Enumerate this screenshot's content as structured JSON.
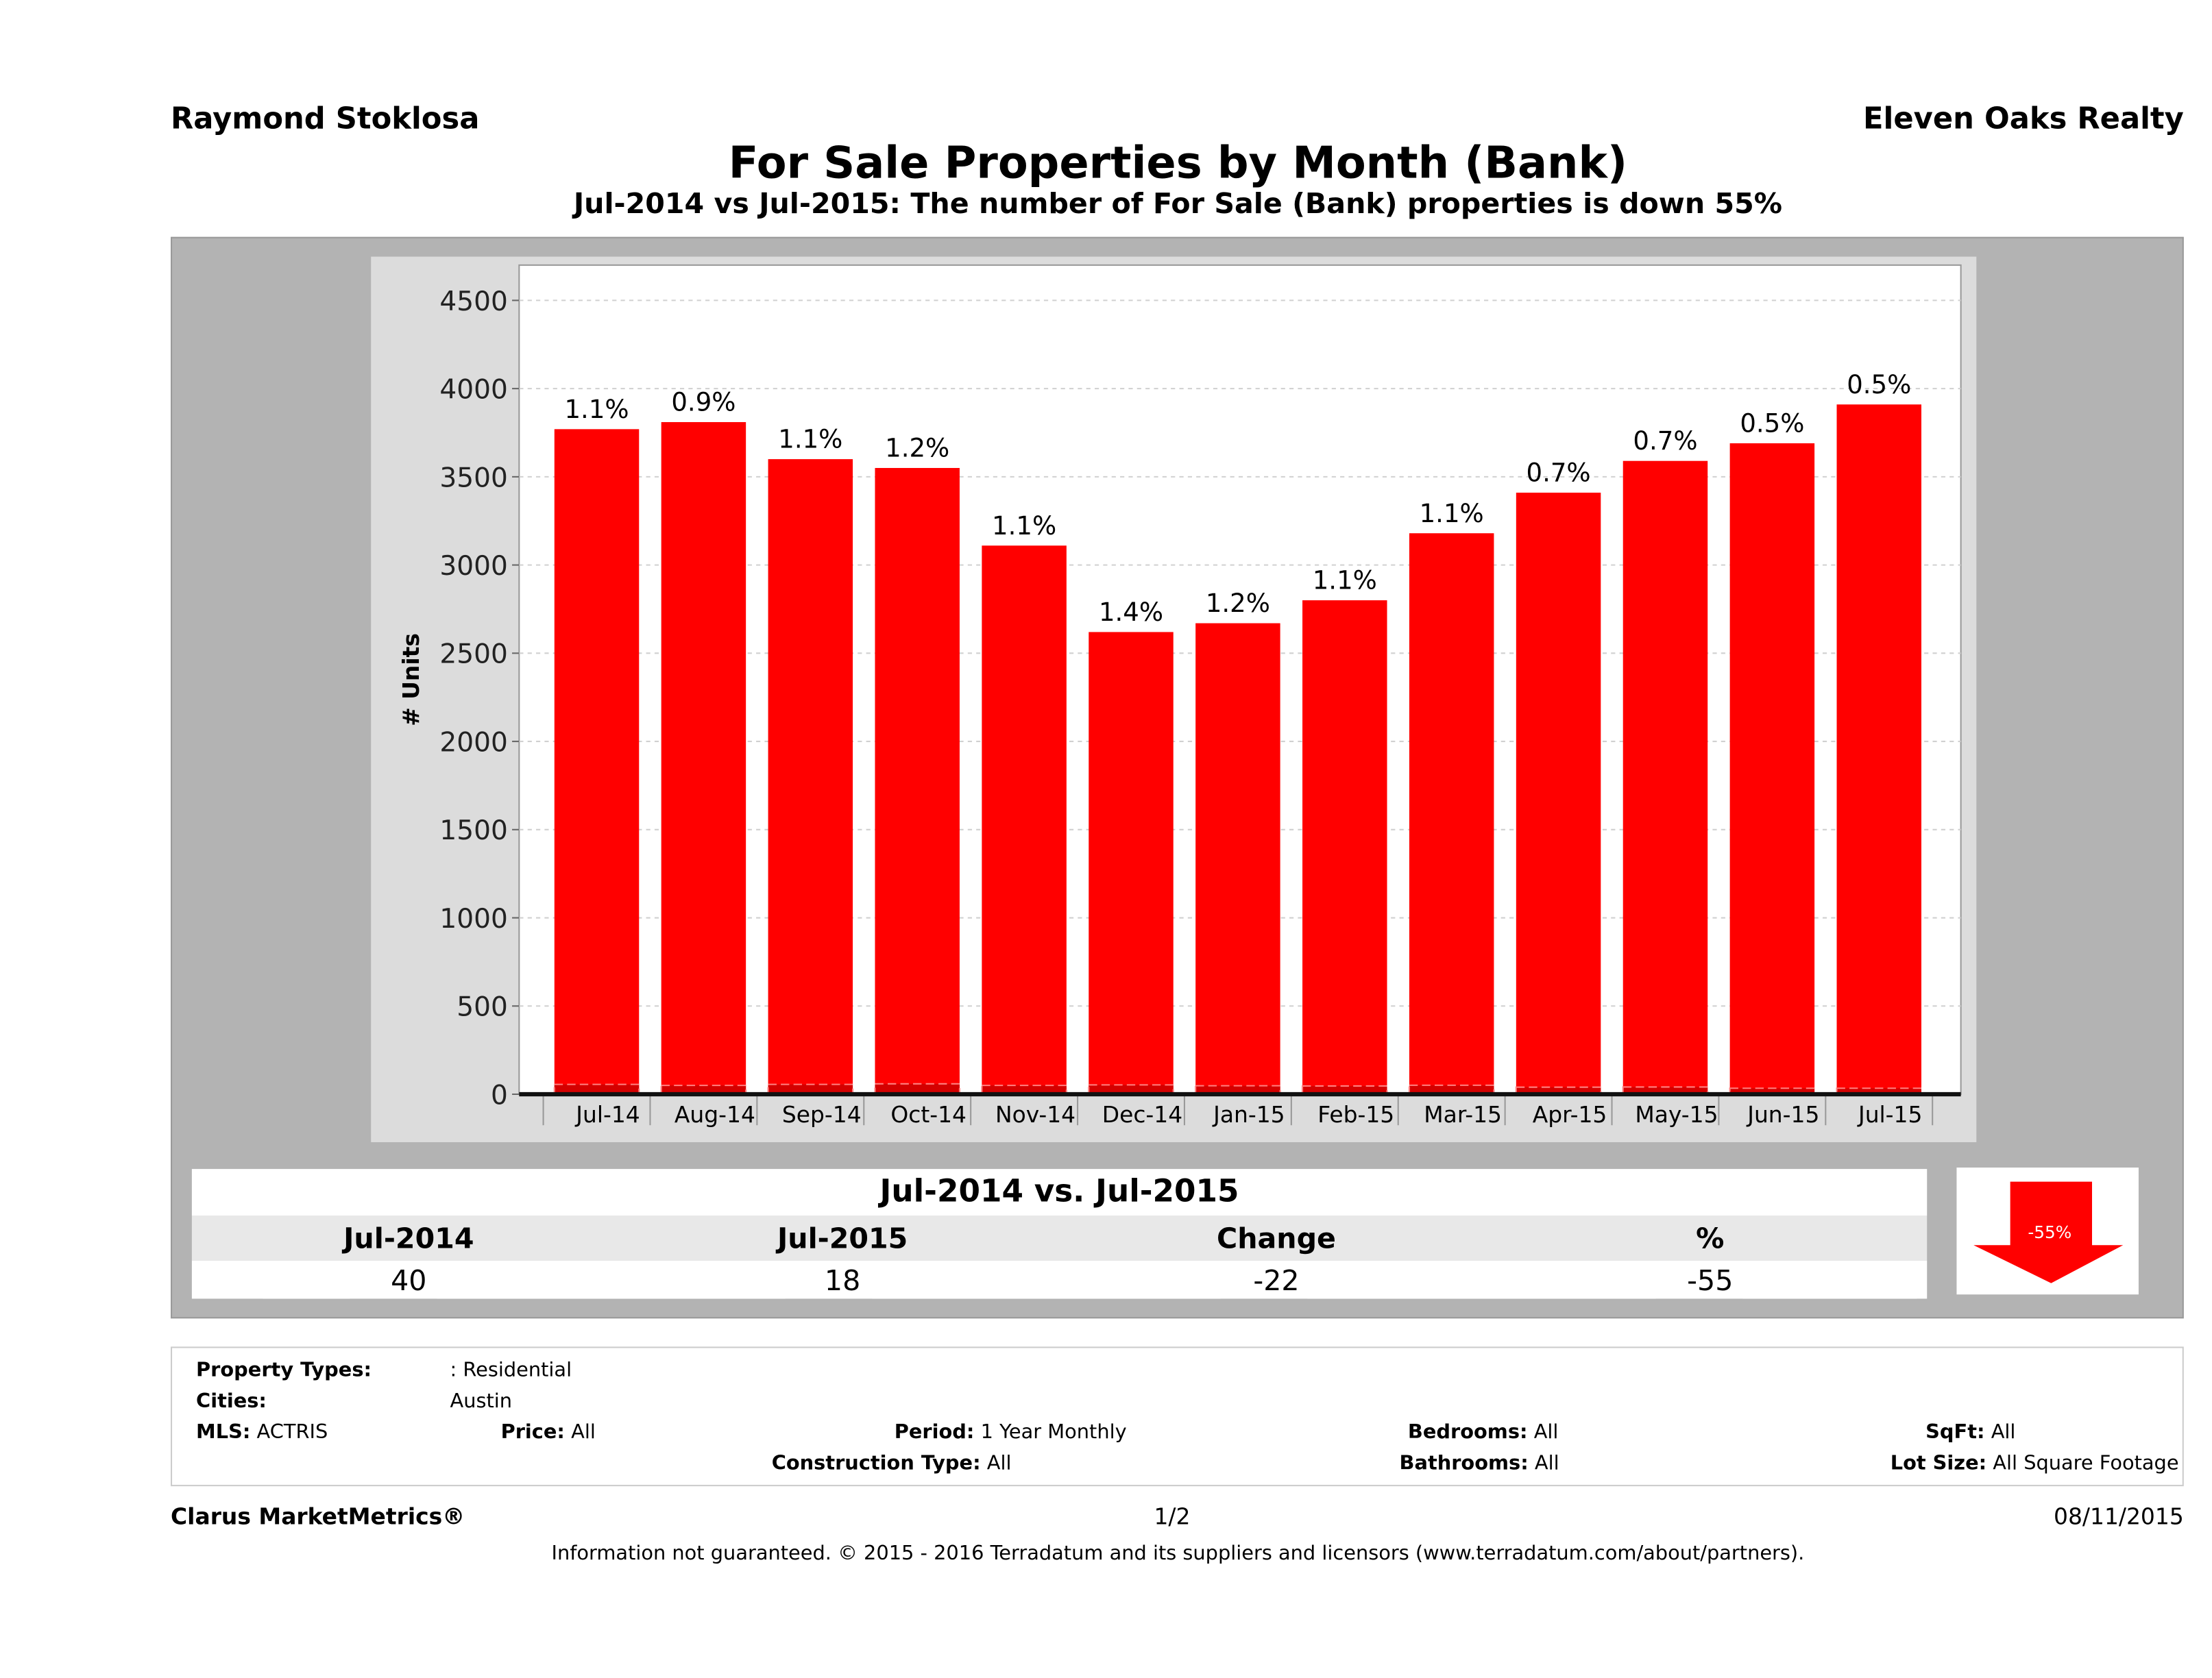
{
  "header": {
    "agent": "Raymond Stoklosa",
    "brokerage": "Eleven Oaks Realty"
  },
  "chart_data": {
    "type": "bar",
    "title": "For Sale Properties by Month (Bank)",
    "subtitle": "Jul-2014 vs Jul-2015: The number of For Sale (Bank)  properties is down 55%",
    "ylabel": "# Units",
    "xlabel": "",
    "ylim": [
      0,
      4700
    ],
    "yticks": [
      "0",
      "500",
      "1000",
      "1500",
      "2000",
      "2500",
      "3000",
      "3500",
      "4000",
      "4500"
    ],
    "grid": true,
    "categories": [
      "Jul-14",
      "Aug-14",
      "Sep-14",
      "Oct-14",
      "Nov-14",
      "Dec-14",
      "Jan-15",
      "Feb-15",
      "Mar-15",
      "Apr-15",
      "May-15",
      "Jun-15",
      "Jul-15"
    ],
    "series": [
      {
        "values": [
          3770,
          3810,
          3600,
          3550,
          3110,
          2620,
          2670,
          2800,
          3180,
          3410,
          3590,
          3690,
          3910
        ]
      },
      {
        "values": [
          40,
          34,
          40,
          43,
          34,
          37,
          32,
          31,
          35,
          24,
          25,
          18,
          18
        ]
      }
    ],
    "data_labels": [
      "1.1%",
      "0.9%",
      "1.1%",
      "1.2%",
      "1.1%",
      "1.4%",
      "1.2%",
      "1.1%",
      "1.1%",
      "0.7%",
      "0.7%",
      "0.5%",
      "0.5%"
    ],
    "colors": {
      "bar": "#ff0000",
      "bank": "#d40000",
      "grid": "#d0d0d0"
    }
  },
  "summary": {
    "title": "Jul-2014 vs. Jul-2015",
    "headers": [
      "Jul-2014",
      "Jul-2015",
      "Change",
      "%"
    ],
    "values": [
      "40",
      "18",
      "-22",
      "-55"
    ],
    "arrow_label": "-55%",
    "arrow_direction": "down",
    "arrow_color": "#ff0000"
  },
  "filters": {
    "property_types_label": "Property Types:",
    "property_types": ": Residential",
    "cities_label": "Cities:",
    "cities": "Austin",
    "mls_label": "MLS:",
    "mls": "ACTRIS",
    "price_label": "Price:",
    "price": "All",
    "period_label": "Period:",
    "period": "1 Year Monthly",
    "construction_label": "Construction Type:",
    "construction": "All",
    "bedrooms_label": "Bedrooms:",
    "bedrooms": "All",
    "bathrooms_label": "Bathrooms:",
    "bathrooms": "All",
    "sqft_label": "SqFt:",
    "sqft": "All",
    "lot_label": "Lot Size:",
    "lot": "All Square Footage"
  },
  "footer": {
    "brand": "Clarus MarketMetrics®",
    "page": "1/2",
    "date": "08/11/2015",
    "disclaimer": "Information not guaranteed. © 2015 - 2016 Terradatum and its suppliers and licensors (www.terradatum.com/about/partners)."
  }
}
